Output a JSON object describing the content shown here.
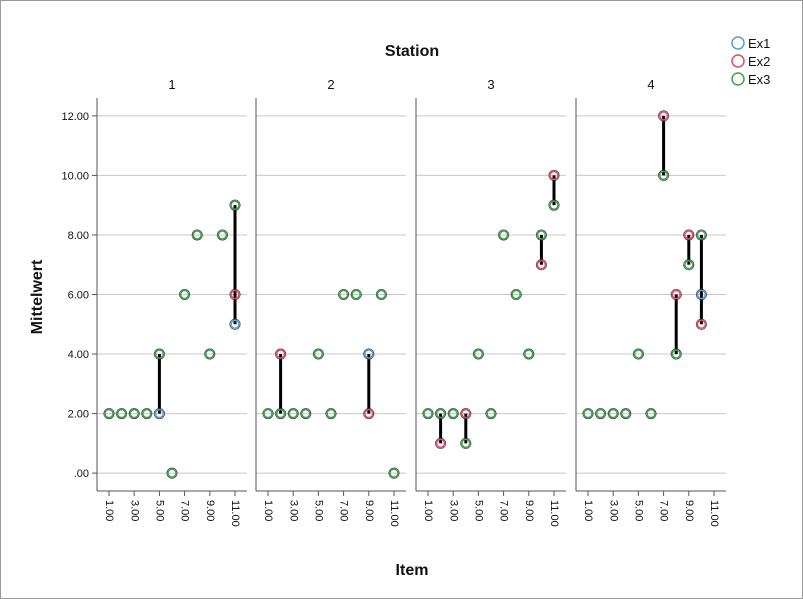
{
  "chart_data": {
    "type": "scatter",
    "title": "Station",
    "xlabel": "Item",
    "ylabel": "Mittelwert",
    "panel_labels": [
      "1",
      "2",
      "3",
      "4"
    ],
    "x_ticks": [
      "1.00",
      "3.00",
      "5.00",
      "7.00",
      "9.00",
      "11.00"
    ],
    "y_ticks": [
      ".00",
      "2.00",
      "4.00",
      "6.00",
      "8.00",
      "10.00",
      "12.00"
    ],
    "xlim": [
      0,
      12
    ],
    "ylim": [
      -0.6,
      12.6
    ],
    "grid": "horizontal",
    "legend_position": "top-right",
    "legend": [
      {
        "name": "Ex1",
        "color": "#5b9bd5"
      },
      {
        "name": "Ex2",
        "color": "#e8486a"
      },
      {
        "name": "Ex3",
        "color": "#3fa34d"
      }
    ],
    "panels": [
      {
        "station": "1",
        "points": [
          {
            "x": 1,
            "y": 2,
            "series": "Ex3"
          },
          {
            "x": 2,
            "y": 2,
            "series": "Ex3"
          },
          {
            "x": 3,
            "y": 2,
            "series": "Ex3"
          },
          {
            "x": 4,
            "y": 2,
            "series": "Ex3"
          },
          {
            "x": 5,
            "y": 2,
            "series": "Ex1"
          },
          {
            "x": 5,
            "y": 4,
            "series": "Ex3"
          },
          {
            "x": 6,
            "y": 0,
            "series": "Ex3"
          },
          {
            "x": 7,
            "y": 6,
            "series": "Ex3"
          },
          {
            "x": 8,
            "y": 8,
            "series": "Ex3"
          },
          {
            "x": 9,
            "y": 4,
            "series": "Ex3"
          },
          {
            "x": 10,
            "y": 8,
            "series": "Ex3"
          },
          {
            "x": 11,
            "y": 5,
            "series": "Ex1"
          },
          {
            "x": 11,
            "y": 6,
            "series": "Ex2"
          },
          {
            "x": 11,
            "y": 9,
            "series": "Ex3"
          }
        ],
        "ranges": [
          {
            "x": 5,
            "low": 2,
            "high": 4
          },
          {
            "x": 11,
            "low": 5,
            "high": 9
          }
        ]
      },
      {
        "station": "2",
        "points": [
          {
            "x": 1,
            "y": 2,
            "series": "Ex3"
          },
          {
            "x": 2,
            "y": 4,
            "series": "Ex2"
          },
          {
            "x": 2,
            "y": 2,
            "series": "Ex3"
          },
          {
            "x": 3,
            "y": 2,
            "series": "Ex3"
          },
          {
            "x": 4,
            "y": 2,
            "series": "Ex3"
          },
          {
            "x": 5,
            "y": 4,
            "series": "Ex3"
          },
          {
            "x": 6,
            "y": 2,
            "series": "Ex3"
          },
          {
            "x": 7,
            "y": 6,
            "series": "Ex3"
          },
          {
            "x": 8,
            "y": 6,
            "series": "Ex3"
          },
          {
            "x": 9,
            "y": 4,
            "series": "Ex1"
          },
          {
            "x": 9,
            "y": 2,
            "series": "Ex2"
          },
          {
            "x": 10,
            "y": 6,
            "series": "Ex3"
          },
          {
            "x": 11,
            "y": 0,
            "series": "Ex3"
          }
        ],
        "ranges": [
          {
            "x": 2,
            "low": 2,
            "high": 4
          },
          {
            "x": 9,
            "low": 2,
            "high": 4
          }
        ]
      },
      {
        "station": "3",
        "points": [
          {
            "x": 1,
            "y": 2,
            "series": "Ex3"
          },
          {
            "x": 2,
            "y": 1,
            "series": "Ex2"
          },
          {
            "x": 2,
            "y": 2,
            "series": "Ex3"
          },
          {
            "x": 3,
            "y": 2,
            "series": "Ex3"
          },
          {
            "x": 4,
            "y": 2,
            "series": "Ex2"
          },
          {
            "x": 4,
            "y": 1,
            "series": "Ex3"
          },
          {
            "x": 5,
            "y": 4,
            "series": "Ex3"
          },
          {
            "x": 6,
            "y": 2,
            "series": "Ex3"
          },
          {
            "x": 7,
            "y": 8,
            "series": "Ex3"
          },
          {
            "x": 8,
            "y": 6,
            "series": "Ex3"
          },
          {
            "x": 9,
            "y": 4,
            "series": "Ex3"
          },
          {
            "x": 10,
            "y": 7,
            "series": "Ex2"
          },
          {
            "x": 10,
            "y": 8,
            "series": "Ex3"
          },
          {
            "x": 11,
            "y": 10,
            "series": "Ex2"
          },
          {
            "x": 11,
            "y": 9,
            "series": "Ex3"
          }
        ],
        "ranges": [
          {
            "x": 2,
            "low": 1,
            "high": 2
          },
          {
            "x": 4,
            "low": 1,
            "high": 2
          },
          {
            "x": 10,
            "low": 7,
            "high": 8
          },
          {
            "x": 11,
            "low": 9,
            "high": 10
          }
        ]
      },
      {
        "station": "4",
        "points": [
          {
            "x": 1,
            "y": 2,
            "series": "Ex3"
          },
          {
            "x": 2,
            "y": 2,
            "series": "Ex3"
          },
          {
            "x": 3,
            "y": 2,
            "series": "Ex3"
          },
          {
            "x": 4,
            "y": 2,
            "series": "Ex3"
          },
          {
            "x": 5,
            "y": 4,
            "series": "Ex3"
          },
          {
            "x": 6,
            "y": 2,
            "series": "Ex3"
          },
          {
            "x": 7,
            "y": 12,
            "series": "Ex2"
          },
          {
            "x": 7,
            "y": 10,
            "series": "Ex3"
          },
          {
            "x": 8,
            "y": 6,
            "series": "Ex2"
          },
          {
            "x": 8,
            "y": 4,
            "series": "Ex3"
          },
          {
            "x": 9,
            "y": 8,
            "series": "Ex2"
          },
          {
            "x": 9,
            "y": 7,
            "series": "Ex3"
          },
          {
            "x": 10,
            "y": 6,
            "series": "Ex1"
          },
          {
            "x": 10,
            "y": 5,
            "series": "Ex2"
          },
          {
            "x": 10,
            "y": 8,
            "series": "Ex3"
          }
        ],
        "ranges": [
          {
            "x": 7,
            "low": 10,
            "high": 12
          },
          {
            "x": 8,
            "low": 4,
            "high": 6
          },
          {
            "x": 9,
            "low": 7,
            "high": 8
          },
          {
            "x": 10,
            "low": 5,
            "high": 8
          }
        ]
      }
    ]
  }
}
